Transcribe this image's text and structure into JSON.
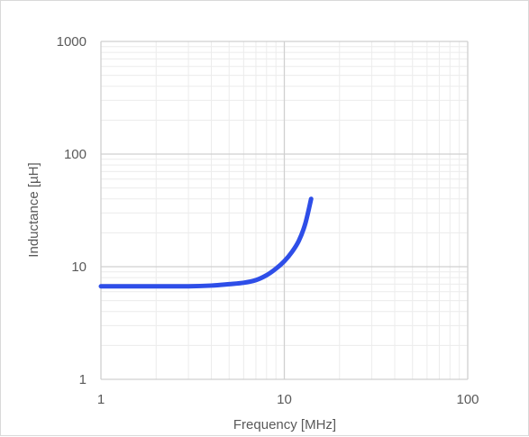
{
  "chart_data": {
    "type": "line",
    "title": "",
    "xlabel": "Frequency [MHz]",
    "ylabel": "Inductance  [µH]",
    "x_scale": "log",
    "y_scale": "log",
    "xlim": [
      1,
      100
    ],
    "ylim": [
      1,
      1000
    ],
    "x_ticks": [
      "1",
      "10",
      "100"
    ],
    "y_ticks": [
      "1",
      "10",
      "100",
      "1000"
    ],
    "grid": true,
    "legend": "none",
    "series": [
      {
        "color": "#2e4ee8",
        "x": [
          1,
          2,
          3,
          4,
          5,
          6,
          7,
          8,
          9,
          10,
          11,
          12,
          13,
          14
        ],
        "y": [
          6.7,
          6.7,
          6.7,
          6.8,
          7.0,
          7.2,
          7.6,
          8.4,
          9.6,
          11.2,
          13.5,
          17,
          24,
          40
        ]
      }
    ]
  }
}
